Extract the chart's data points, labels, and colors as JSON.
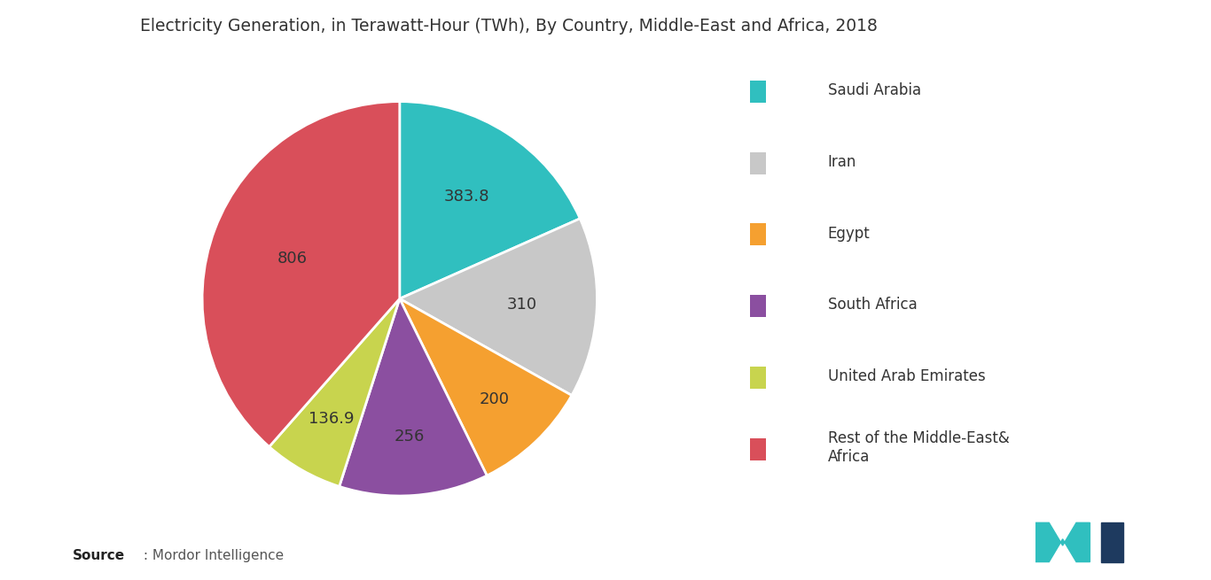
{
  "title": "Electricity Generation, in Terawatt-Hour (TWh), By Country, Middle-East and Africa, 2018",
  "labels": [
    "Saudi Arabia",
    "Iran",
    "Egypt",
    "South Africa",
    "United Arab Emirates",
    "Rest of the Middle-East&\nAfrica"
  ],
  "legend_labels": [
    "Saudi Arabia",
    "Iran",
    "Egypt",
    "South Africa",
    "United Arab Emirates",
    "Rest of the Middle-East&\nAfrica"
  ],
  "values": [
    383.8,
    310,
    200,
    256,
    136.9,
    806
  ],
  "colors": [
    "#30bfbf",
    "#c8c8c8",
    "#f5a030",
    "#8b4fa0",
    "#c8d44e",
    "#d94f5a"
  ],
  "label_values": [
    "383.8",
    "310",
    "200",
    "256",
    "136.9",
    "806"
  ],
  "background_color": "#ffffff",
  "title_fontsize": 13.5,
  "label_fontsize": 13,
  "legend_fontsize": 12,
  "source_bold": "Source",
  "source_normal": " : Mordor Intelligence",
  "logo_teal": "#30bfbf",
  "logo_navy": "#1e3a5f"
}
